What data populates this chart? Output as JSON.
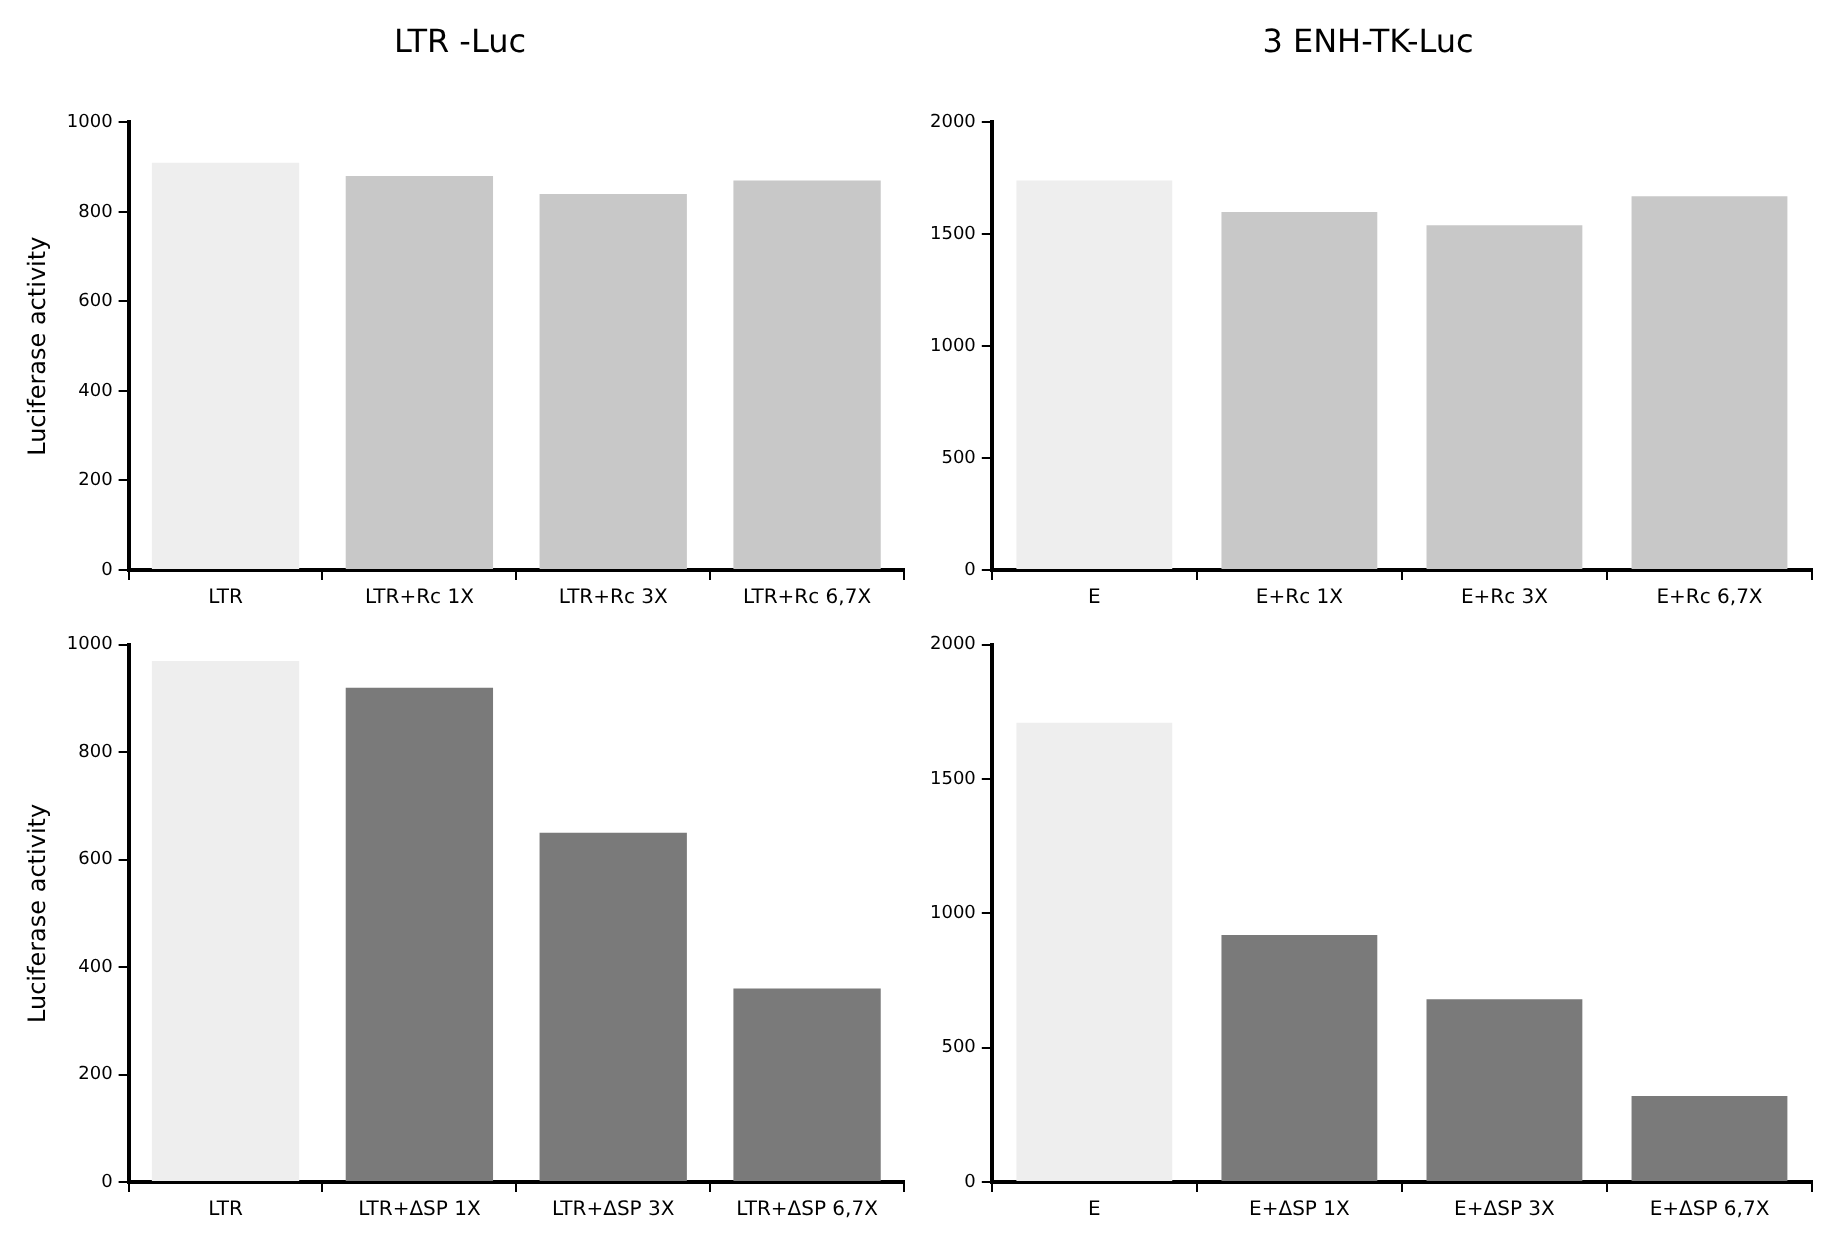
{
  "chart_data": [
    {
      "type": "bar",
      "title": "LTR -Luc",
      "ylabel": "Luciferase activity",
      "categories": [
        "LTR",
        "LTR+Rc 1X",
        "LTR+Rc 3X",
        "LTR+Rc 6,7X"
      ],
      "values": [
        910,
        880,
        840,
        870
      ],
      "colors": [
        "#eeeeee",
        "#c8c8c8",
        "#c8c8c8",
        "#c8c8c8"
      ],
      "ylim": [
        0,
        1000
      ],
      "yticks": [
        0,
        200,
        400,
        600,
        800,
        1000
      ],
      "grid": false,
      "legend": false
    },
    {
      "type": "bar",
      "title": "3 ENH-TK-Luc",
      "categories": [
        "E",
        "E+Rc 1X",
        "E+Rc 3X",
        "E+Rc 6,7X"
      ],
      "values": [
        1740,
        1600,
        1540,
        1670
      ],
      "colors": [
        "#eeeeee",
        "#c8c8c8",
        "#c8c8c8",
        "#c8c8c8"
      ],
      "ylim": [
        0,
        2000
      ],
      "yticks": [
        0,
        500,
        1000,
        1500,
        2000
      ],
      "grid": false,
      "legend": false
    },
    {
      "type": "bar",
      "ylabel": "Luciferase activity",
      "categories": [
        "LTR",
        "LTR+ΔSP 1X",
        "LTR+ΔSP 3X",
        "LTR+ΔSP 6,7X"
      ],
      "values": [
        970,
        920,
        650,
        360
      ],
      "colors": [
        "#eeeeee",
        "#7a7a7a",
        "#7a7a7a",
        "#7a7a7a"
      ],
      "ylim": [
        0,
        1000
      ],
      "yticks": [
        0,
        200,
        400,
        600,
        800,
        1000
      ],
      "grid": false,
      "legend": false
    },
    {
      "type": "bar",
      "categories": [
        "E",
        "E+ΔSP 1X",
        "E+ΔSP 3X",
        "E+ΔSP 6,7X"
      ],
      "values": [
        1710,
        920,
        680,
        320
      ],
      "colors": [
        "#eeeeee",
        "#7a7a7a",
        "#7a7a7a",
        "#7a7a7a"
      ],
      "ylim": [
        0,
        2000
      ],
      "yticks": [
        0,
        500,
        1000,
        1500,
        2000
      ],
      "grid": false,
      "legend": false
    }
  ]
}
